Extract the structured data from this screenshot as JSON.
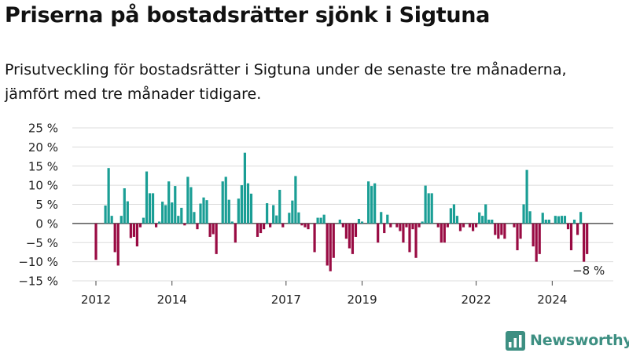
{
  "title": "Priserna på bostadsrätter sjönk i Sigtuna",
  "subtitle": "Prisutveckling för bostadsrätter i Sigtuna under de senaste tre månaderna, jämfört med tre månader tidigare.",
  "brand": {
    "name": "Newsworthy",
    "icon": "newsworthy-logo-icon"
  },
  "colors": {
    "positive": "#1a9e95",
    "negative": "#990b43",
    "grid": "#dcdcdc",
    "zero": "#333333"
  },
  "chart_data": {
    "type": "bar",
    "title": "Priserna på bostadsrätter sjönk i Sigtuna",
    "subtitle": "Prisutveckling för bostadsrätter i Sigtuna under de senaste tre månaderna, jämfört med tre månader tidigare.",
    "xlabel": "",
    "ylabel": "",
    "unit": "%",
    "ylim": [
      -15,
      25
    ],
    "y_ticks": [
      {
        "value": 25,
        "label": "25 %"
      },
      {
        "value": 20,
        "label": "20 %"
      },
      {
        "value": 15,
        "label": "15 %"
      },
      {
        "value": 10,
        "label": "10 %"
      },
      {
        "value": 5,
        "label": "5 %"
      },
      {
        "value": 0,
        "label": "0 %"
      },
      {
        "value": -5,
        "label": "−5 %"
      },
      {
        "value": -10,
        "label": "−10 %"
      },
      {
        "value": -15,
        "label": "−15 %"
      }
    ],
    "x_ticks": [
      {
        "index": 0,
        "label": "2012"
      },
      {
        "index": 24,
        "label": "2014"
      },
      {
        "index": 60,
        "label": "2017"
      },
      {
        "index": 84,
        "label": "2019"
      },
      {
        "index": 120,
        "label": "2022"
      },
      {
        "index": 144,
        "label": "2024"
      }
    ],
    "grid": true,
    "legend": "none",
    "start": "2012-01",
    "frequency": "monthly",
    "values": [
      -9.5,
      0,
      0,
      4.7,
      14.5,
      2,
      -7.5,
      -11,
      2,
      9.2,
      5.8,
      -3.8,
      -3.5,
      -6,
      -1,
      1.5,
      13.6,
      7.9,
      7.9,
      -1,
      0.5,
      5.7,
      4.8,
      11,
      5.5,
      9.8,
      2,
      4.1,
      -0.5,
      12.2,
      9.5,
      3,
      -1.5,
      5.2,
      6.8,
      6.1,
      -3.5,
      -2.8,
      -8,
      0,
      11,
      12.2,
      6.2,
      0.5,
      -5,
      6.5,
      10,
      18.5,
      10.5,
      7.8,
      0,
      -3.5,
      -2.5,
      -1.5,
      5.3,
      -1,
      4.8,
      2.1,
      8.8,
      -1,
      0,
      2.8,
      6,
      12.4,
      2.9,
      -0.5,
      -1,
      -1.5,
      0,
      -7.5,
      1.5,
      1.5,
      2.3,
      -11,
      -12.5,
      -9,
      0,
      1,
      -1,
      -4,
      -6.5,
      -8,
      -3.5,
      1.2,
      0.5,
      0,
      11,
      9.8,
      10.5,
      -5,
      3,
      -2.5,
      2.3,
      -1,
      0,
      -1,
      -2,
      -5,
      -1,
      -7.5,
      -1.5,
      -9,
      -1,
      0.5,
      9.9,
      7.9,
      7.9,
      0,
      -1,
      -5,
      -5,
      -1,
      4,
      5,
      2,
      -2,
      -1,
      0,
      -1,
      -2,
      -1,
      2.9,
      2,
      5,
      1,
      1,
      -3,
      -4,
      -3,
      -4,
      0,
      0,
      -1,
      -7,
      -4,
      5,
      14,
      3.2,
      -6,
      -10,
      -8,
      2.8,
      1,
      1,
      0,
      2,
      1.9,
      2,
      2,
      -1.5,
      -7,
      1,
      -3,
      3,
      -10,
      -8
    ]
  },
  "annotation": {
    "label": "−8 %",
    "index": 155
  }
}
